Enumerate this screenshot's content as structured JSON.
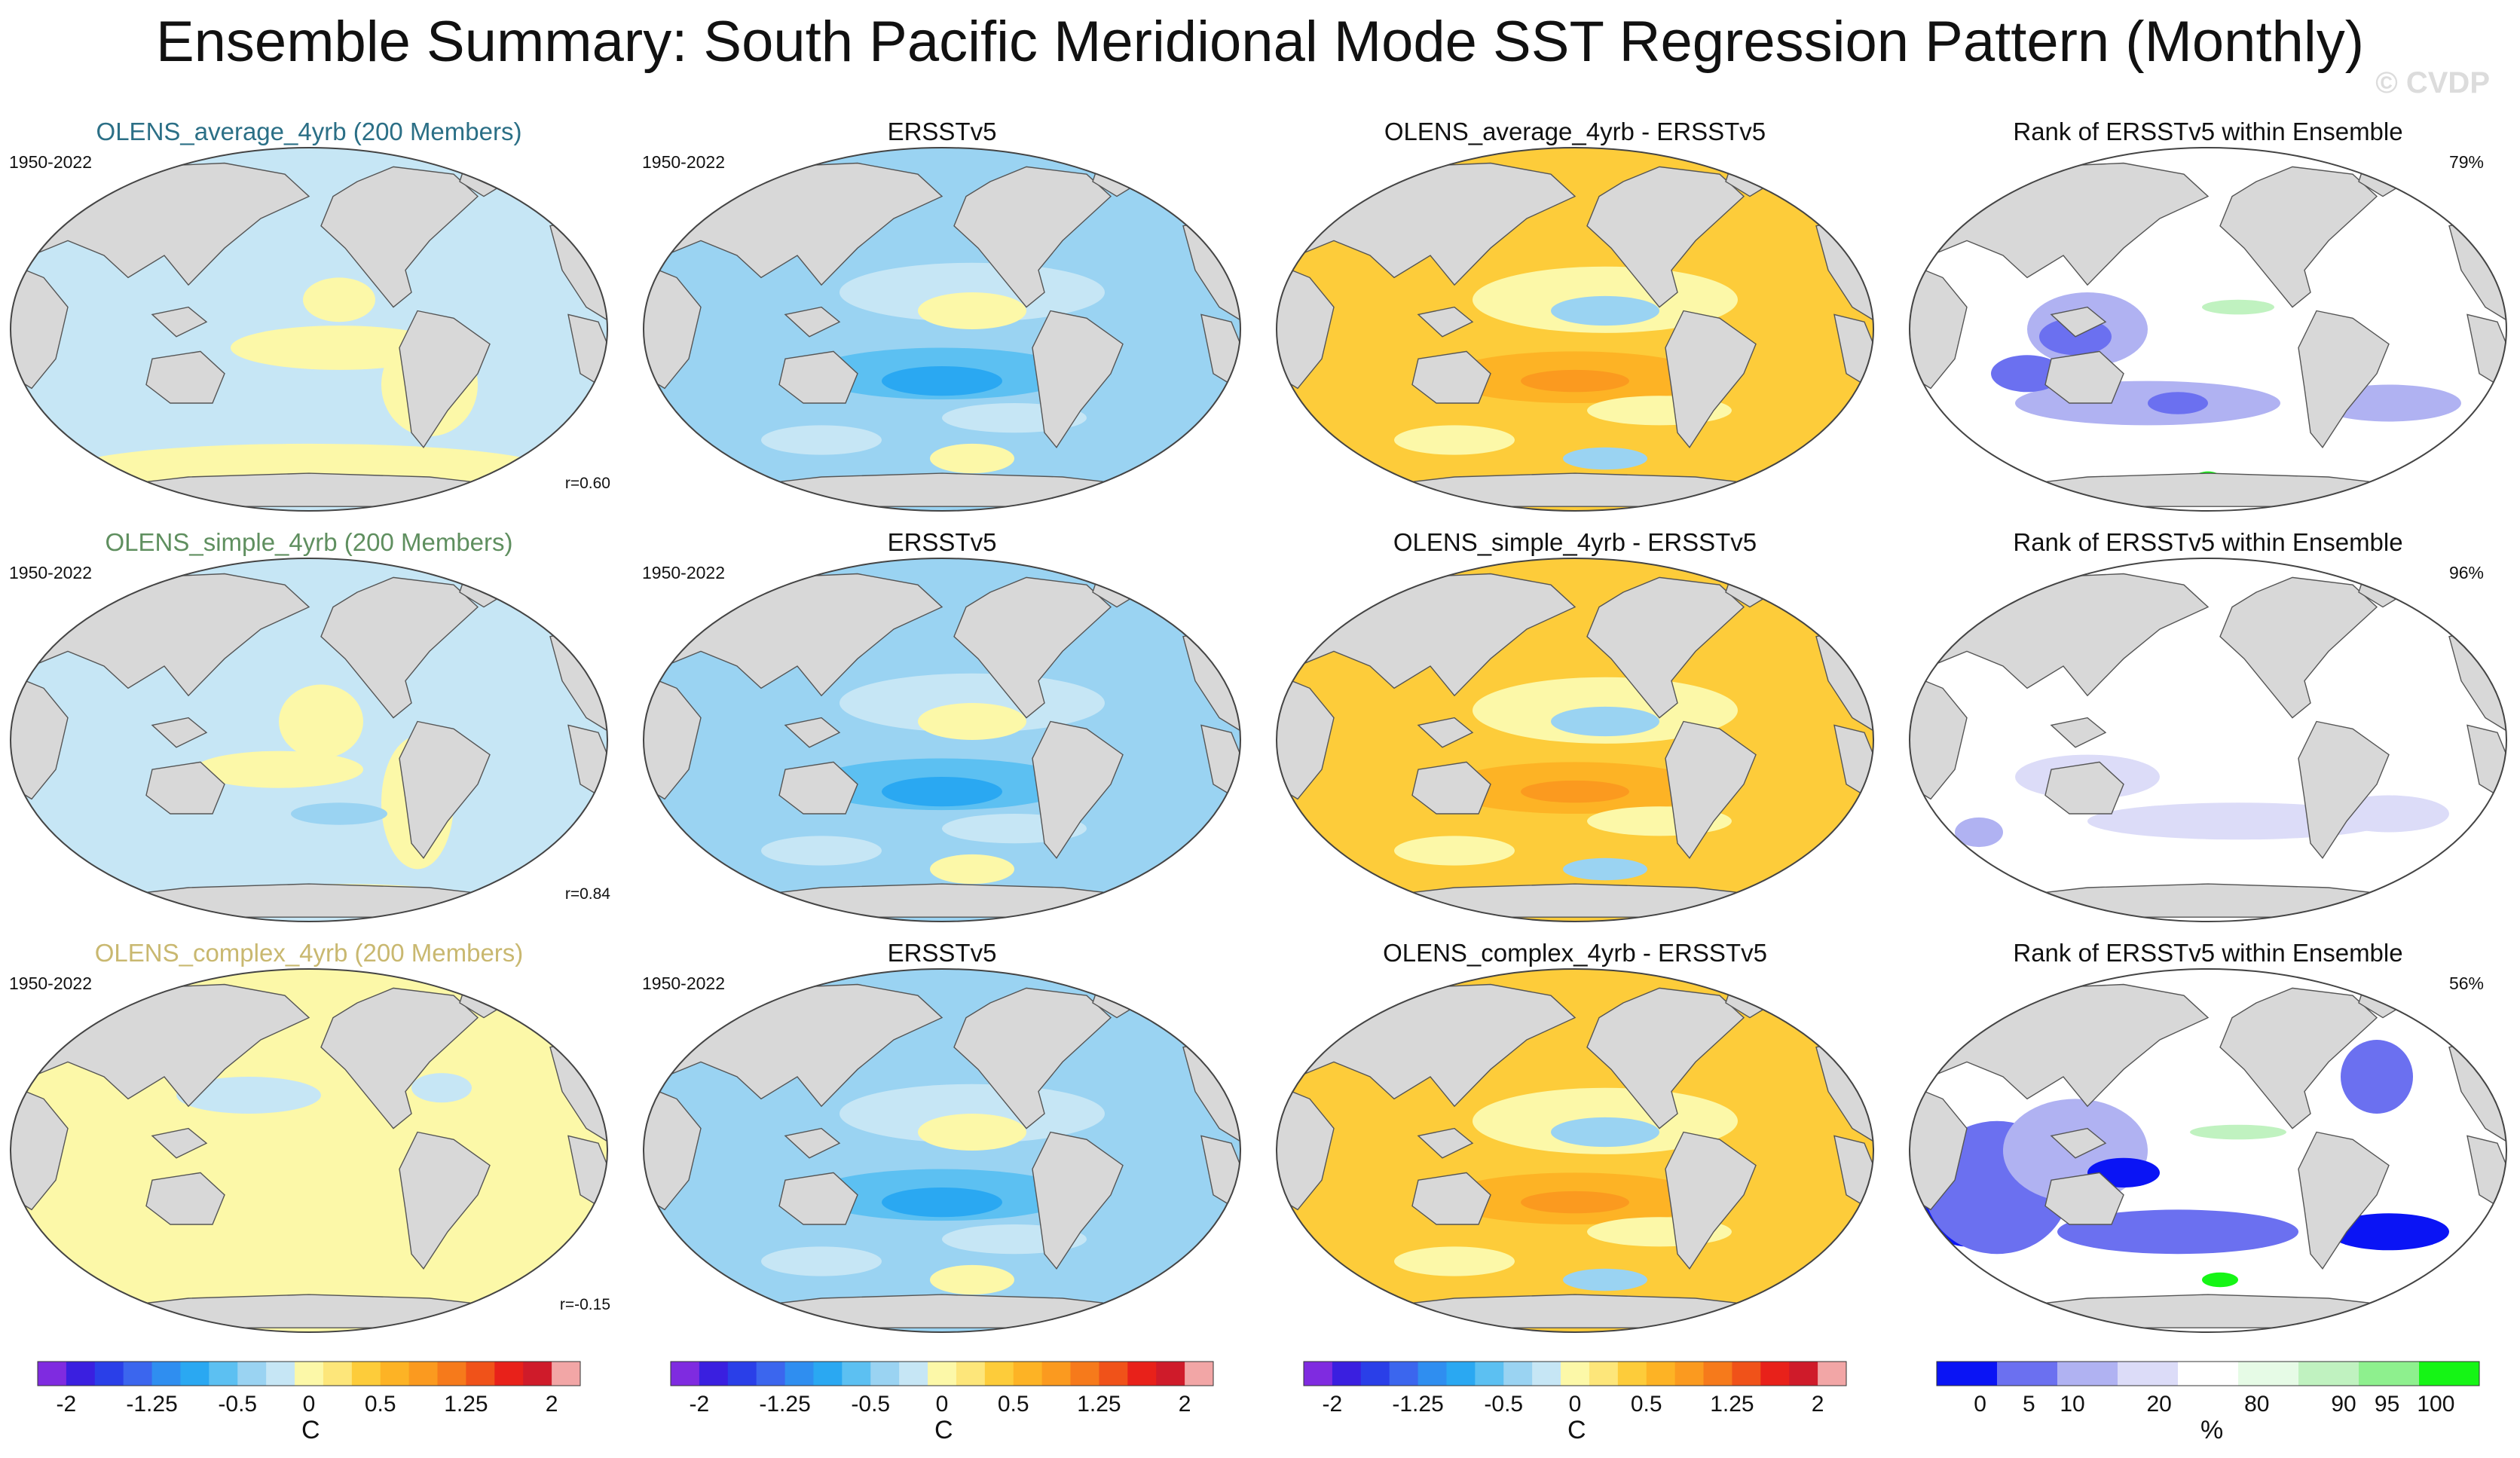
{
  "title": "Ensemble Summary: South Pacific Meridional Mode SST Regression Pattern (Monthly)",
  "watermark": "© CVDP",
  "rows": [
    {
      "ensemble": {
        "title": "OLENS_average_4yrb (200 Members)",
        "title_color": "#2b6f86",
        "period": "1950-2022",
        "r": "r=0.60"
      },
      "obs": {
        "title": "ERSSTv5",
        "period": "1950-2022"
      },
      "diff": {
        "title": "OLENS_average_4yrb - ERSSTv5"
      },
      "rank": {
        "title": "Rank of ERSSTv5 within Ensemble",
        "pct": "79%"
      }
    },
    {
      "ensemble": {
        "title": "OLENS_simple_4yrb (200 Members)",
        "title_color": "#5f8f5f",
        "period": "1950-2022",
        "r": "r=0.84"
      },
      "obs": {
        "title": "ERSSTv5",
        "period": "1950-2022"
      },
      "diff": {
        "title": "OLENS_simple_4yrb - ERSSTv5"
      },
      "rank": {
        "title": "Rank of ERSSTv5 within Ensemble",
        "pct": "96%"
      }
    },
    {
      "ensemble": {
        "title": "OLENS_complex_4yrb (200 Members)",
        "title_color": "#c9b870",
        "period": "1950-2022",
        "r": "r=-0.15"
      },
      "obs": {
        "title": "ERSSTv5",
        "period": "1950-2022"
      },
      "diff": {
        "title": "OLENS_complex_4yrb - ERSSTv5"
      },
      "rank": {
        "title": "Rank of ERSSTv5 within Ensemble",
        "pct": "56%"
      }
    }
  ],
  "colorbars": {
    "sst": {
      "colors": [
        "#7f2be0",
        "#3a1fe0",
        "#2a3fe8",
        "#3b66ee",
        "#2f8ef0",
        "#2aa8f2",
        "#5cc0f2",
        "#9ad3f2",
        "#c6e6f5",
        "#fcf8a8",
        "#fde67a",
        "#fdcc3a",
        "#fdb325",
        "#fb9a1f",
        "#f67a1b",
        "#f05219",
        "#e8211a",
        "#cf1b2a",
        "#f2a6a6"
      ],
      "tick_labels": [
        "-2",
        "-1.25",
        "-0.5",
        "0",
        "0.5",
        "1.25",
        "2"
      ],
      "tick_boxes": [
        1,
        4,
        7,
        9.5,
        12,
        15,
        18
      ],
      "units": "C"
    },
    "rank": {
      "colors": [
        "#0a14f5",
        "#6b70f0",
        "#b0b2f2",
        "#dcdcf8",
        "#ffffff",
        "#e6fbe6",
        "#c0f2c0",
        "#8ef08e",
        "#15f515"
      ],
      "tick_labels": [
        "0",
        "5",
        "10",
        "20",
        "80",
        "90",
        "95",
        "100"
      ],
      "tick_pos": [
        0.08,
        0.17,
        0.25,
        0.41,
        0.59,
        0.75,
        0.83,
        0.92
      ],
      "units": "%"
    }
  },
  "map_palettes": {
    "ensemble_avg": {
      "base": "#c6e6f5",
      "blobs": [
        [
          "#fcf8a8",
          0.55,
          0.42,
          0.06,
          0.06
        ],
        [
          "#fcf8a8",
          0.55,
          0.55,
          0.18,
          0.06
        ],
        [
          "#fcf8a8",
          0.7,
          0.65,
          0.08,
          0.14
        ],
        [
          "#fcf8a8",
          0.5,
          0.88,
          0.4,
          0.07
        ]
      ]
    },
    "ensemble_simple": {
      "base": "#c6e6f5",
      "blobs": [
        [
          "#fcf8a8",
          0.52,
          0.45,
          0.07,
          0.1
        ],
        [
          "#fcf8a8",
          0.45,
          0.58,
          0.14,
          0.05
        ],
        [
          "#fcf8a8",
          0.68,
          0.67,
          0.06,
          0.18
        ],
        [
          "#9ad3f2",
          0.55,
          0.7,
          0.08,
          0.03
        ],
        [
          "#fcf8a8",
          0.55,
          0.92,
          0.2,
          0.03
        ]
      ]
    },
    "ensemble_complex": {
      "base": "#fcf8a8",
      "blobs": [
        [
          "#c6e6f5",
          0.4,
          0.35,
          0.12,
          0.05
        ],
        [
          "#c6e6f5",
          0.72,
          0.33,
          0.05,
          0.04
        ],
        [
          "#c6e6f5",
          0.62,
          0.12,
          0.05,
          0.03
        ]
      ]
    },
    "obs": {
      "base": "#9ad3f2",
      "blobs": [
        [
          "#c6e6f5",
          0.55,
          0.4,
          0.22,
          0.08
        ],
        [
          "#fcf8a8",
          0.55,
          0.45,
          0.09,
          0.05
        ],
        [
          "#5cc0f2",
          0.5,
          0.62,
          0.22,
          0.07
        ],
        [
          "#2aa8f2",
          0.5,
          0.64,
          0.1,
          0.04
        ],
        [
          "#c6e6f5",
          0.62,
          0.74,
          0.12,
          0.04
        ],
        [
          "#fcf8a8",
          0.55,
          0.85,
          0.07,
          0.04
        ],
        [
          "#c6e6f5",
          0.3,
          0.8,
          0.1,
          0.04
        ]
      ]
    },
    "diff": {
      "base": "#fdcc3a",
      "blobs": [
        [
          "#fcf8a8",
          0.55,
          0.42,
          0.22,
          0.09
        ],
        [
          "#9ad3f2",
          0.55,
          0.45,
          0.09,
          0.04
        ],
        [
          "#fdb325",
          0.5,
          0.63,
          0.22,
          0.07
        ],
        [
          "#fb9a1f",
          0.5,
          0.64,
          0.09,
          0.03
        ],
        [
          "#fcf8a8",
          0.64,
          0.72,
          0.12,
          0.04
        ],
        [
          "#9ad3f2",
          0.55,
          0.85,
          0.07,
          0.03
        ],
        [
          "#fcf8a8",
          0.3,
          0.8,
          0.1,
          0.04
        ]
      ]
    },
    "rank_79": {
      "base": "#ffffff",
      "blobs": [
        [
          "#b0b2f2",
          0.3,
          0.5,
          0.1,
          0.1
        ],
        [
          "#6b70f0",
          0.28,
          0.52,
          0.06,
          0.05
        ],
        [
          "#b0b2f2",
          0.4,
          0.7,
          0.22,
          0.06
        ],
        [
          "#6b70f0",
          0.2,
          0.62,
          0.06,
          0.05
        ],
        [
          "#6b70f0",
          0.45,
          0.7,
          0.05,
          0.03
        ],
        [
          "#b0b2f2",
          0.8,
          0.7,
          0.12,
          0.05
        ],
        [
          "#c0f2c0",
          0.55,
          0.44,
          0.06,
          0.02
        ],
        [
          "#15f515",
          0.5,
          0.9,
          0.02,
          0.015
        ]
      ]
    },
    "rank_96": {
      "base": "#ffffff",
      "blobs": [
        [
          "#dcdcf8",
          0.3,
          0.6,
          0.12,
          0.06
        ],
        [
          "#dcdcf8",
          0.55,
          0.72,
          0.25,
          0.05
        ],
        [
          "#dcdcf8",
          0.8,
          0.7,
          0.1,
          0.05
        ],
        [
          "#b0b2f2",
          0.12,
          0.75,
          0.04,
          0.04
        ],
        [
          "#8ef08e",
          0.5,
          0.92,
          0.02,
          0.015
        ]
      ]
    },
    "rank_56": {
      "base": "#ffffff",
      "blobs": [
        [
          "#0a14f5",
          0.1,
          0.62,
          0.08,
          0.14
        ],
        [
          "#6b70f0",
          0.15,
          0.6,
          0.12,
          0.18
        ],
        [
          "#b0b2f2",
          0.28,
          0.5,
          0.12,
          0.14
        ],
        [
          "#0a14f5",
          0.36,
          0.56,
          0.06,
          0.04
        ],
        [
          "#6b70f0",
          0.45,
          0.72,
          0.2,
          0.06
        ],
        [
          "#0a14f5",
          0.8,
          0.72,
          0.1,
          0.05
        ],
        [
          "#6b70f0",
          0.78,
          0.3,
          0.06,
          0.1
        ],
        [
          "#c0f2c0",
          0.55,
          0.45,
          0.08,
          0.02
        ],
        [
          "#15f515",
          0.52,
          0.85,
          0.03,
          0.02
        ]
      ]
    }
  }
}
